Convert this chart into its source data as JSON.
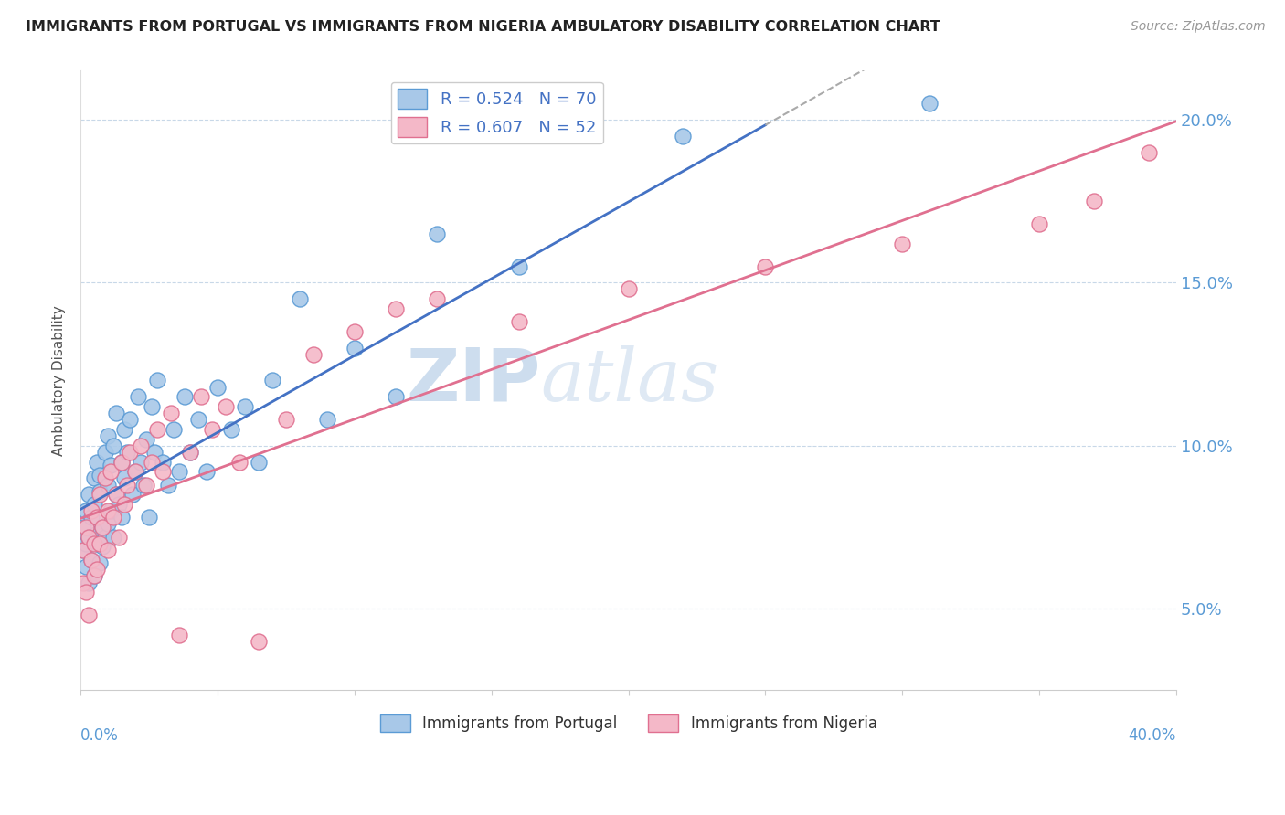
{
  "title": "IMMIGRANTS FROM PORTUGAL VS IMMIGRANTS FROM NIGERIA AMBULATORY DISABILITY CORRELATION CHART",
  "source": "Source: ZipAtlas.com",
  "ylabel": "Ambulatory Disability",
  "xmin": 0.0,
  "xmax": 0.4,
  "ymin": 0.025,
  "ymax": 0.215,
  "portugal_fill": "#A8C8E8",
  "portugal_edge": "#5B9BD5",
  "nigeria_fill": "#F4B8C8",
  "nigeria_edge": "#E07090",
  "trend_portugal_color": "#4472C4",
  "trend_nigeria_color": "#E07090",
  "trend_extension_color": "#AAAAAA",
  "legend_text_color": "#4472C4",
  "ytick_color": "#5B9BD5",
  "grid_color": "#C8D8E8",
  "background_color": "#FFFFFF",
  "legend_r_portugal": "R = 0.524",
  "legend_n_portugal": "N = 70",
  "legend_r_nigeria": "R = 0.607",
  "legend_n_nigeria": "N = 52",
  "watermark_zip_color": "#C5D8EC",
  "watermark_atlas_color": "#C5D8EC"
}
